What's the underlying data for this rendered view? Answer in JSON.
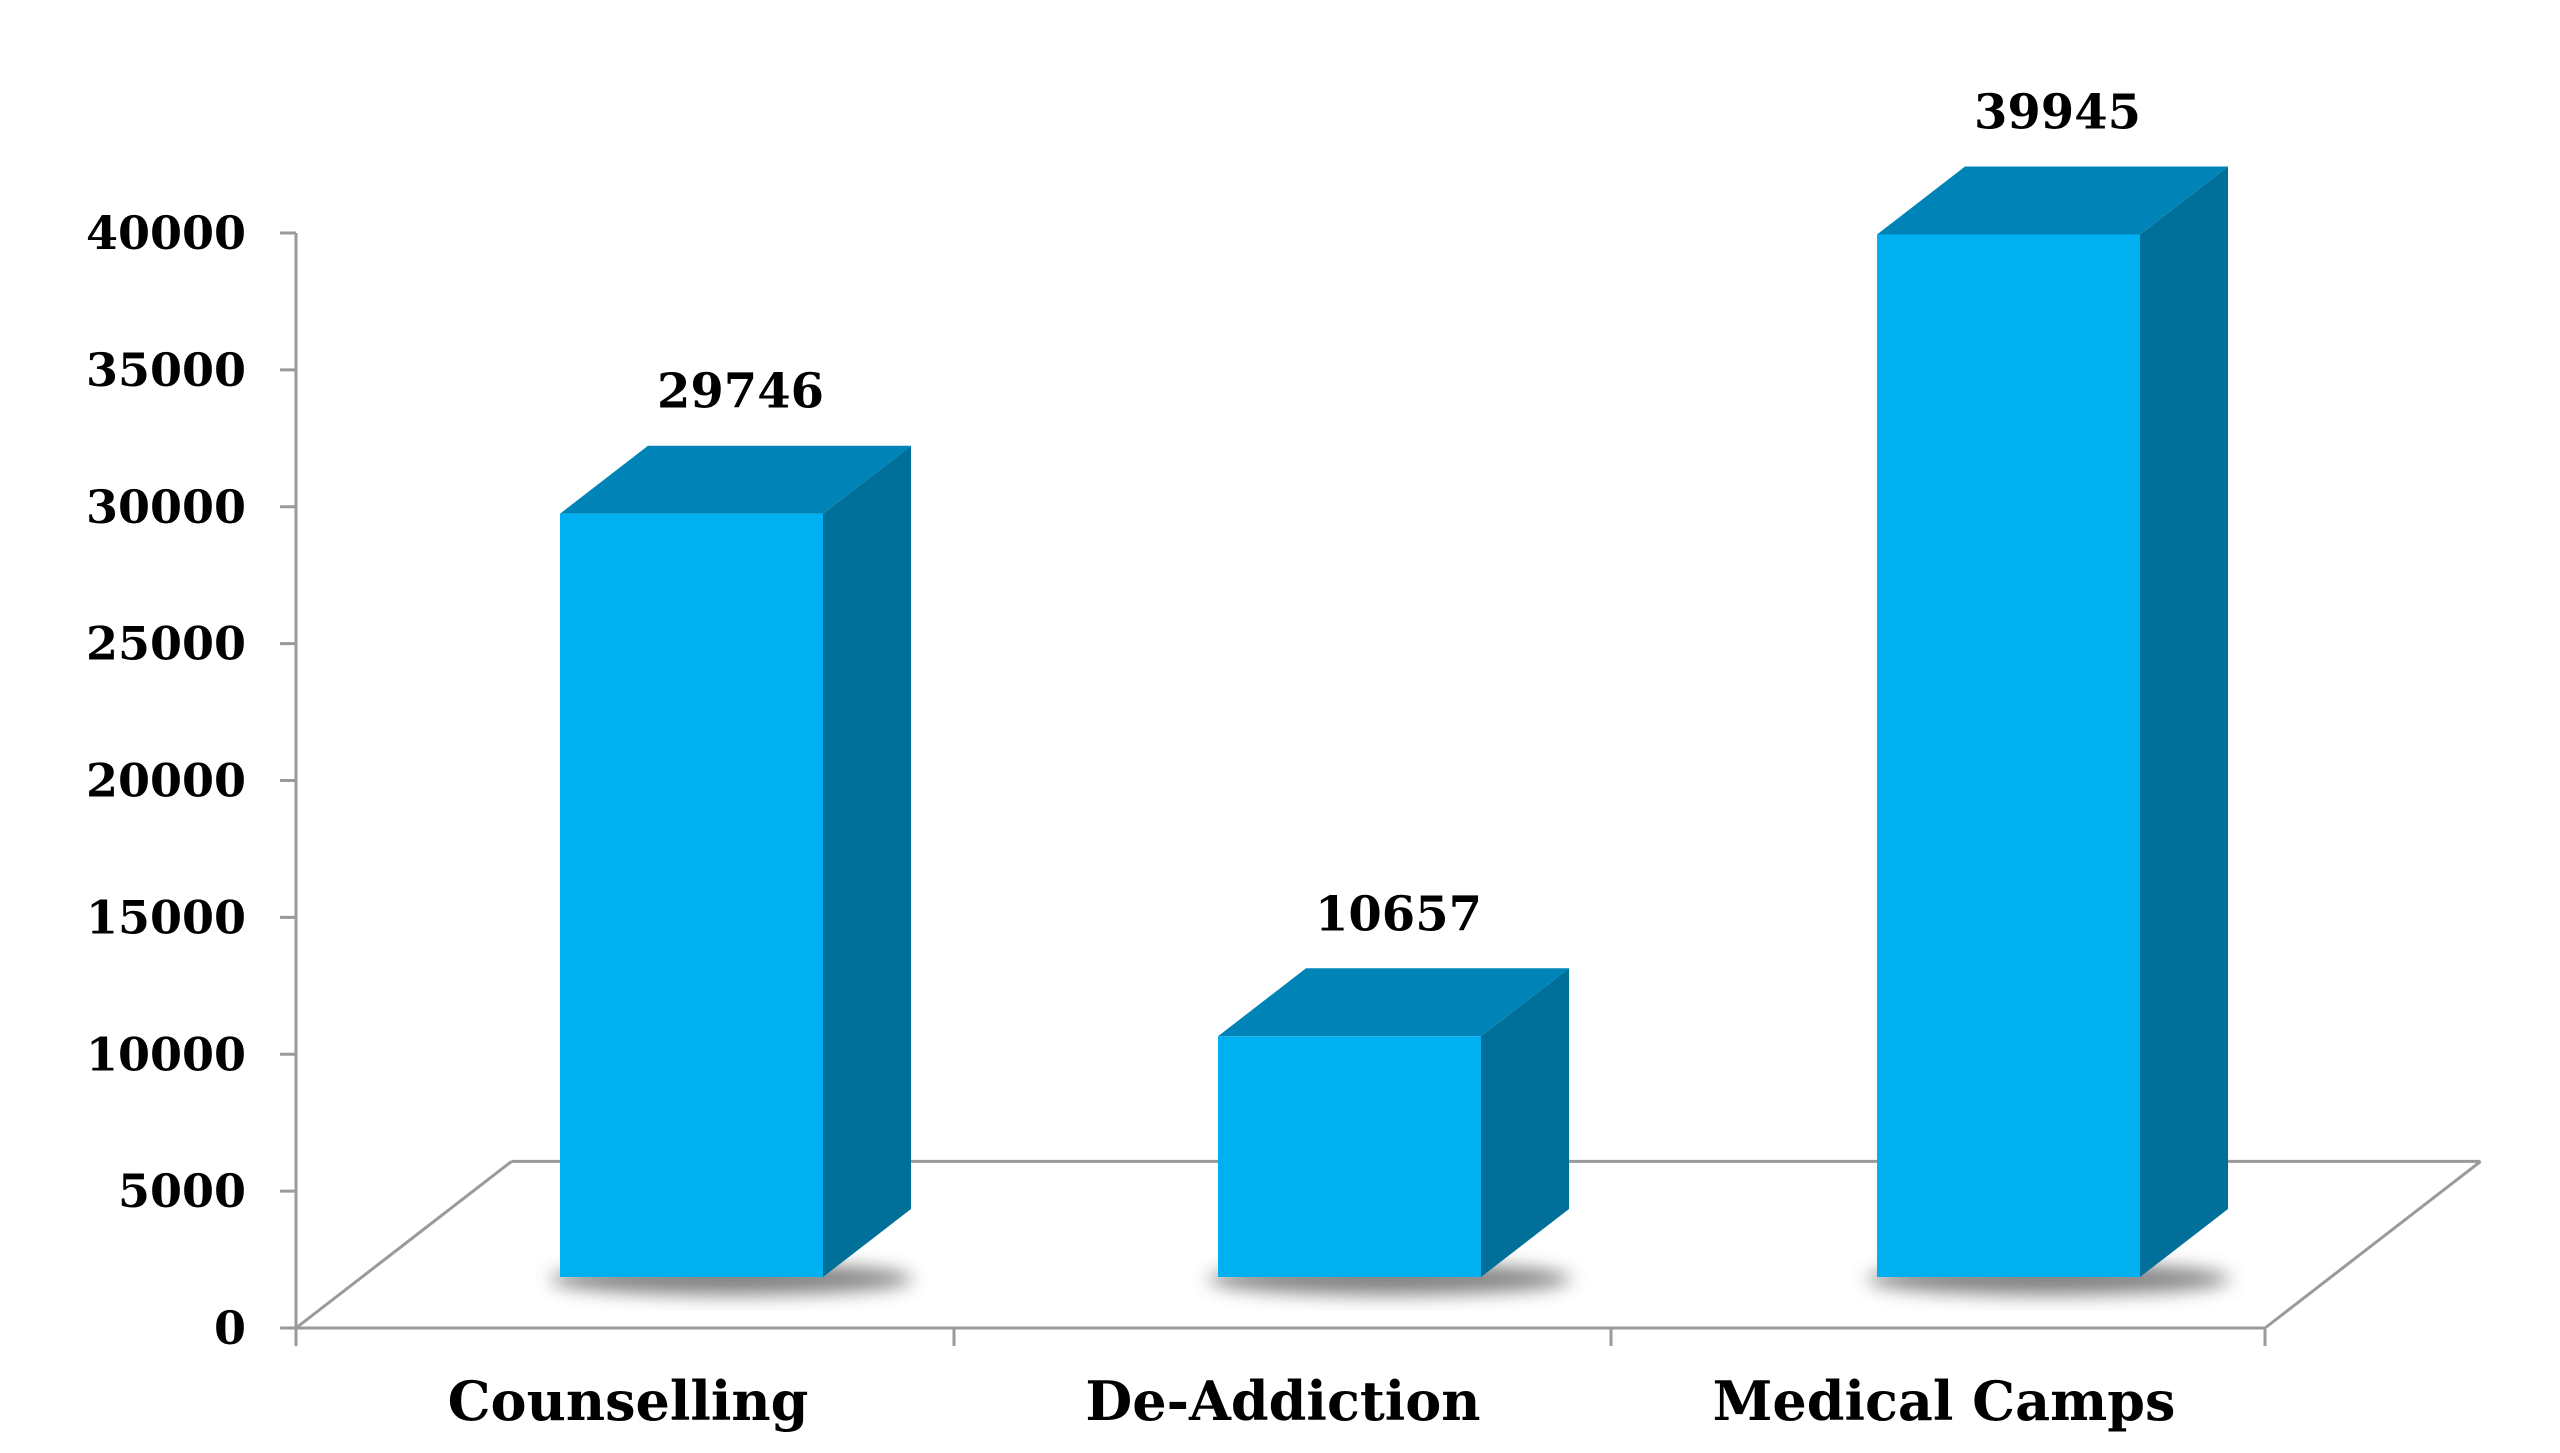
{
  "chart_data": {
    "type": "bar",
    "categories": [
      "Counselling",
      "De-Addiction",
      "Medical Camps"
    ],
    "values": [
      29746,
      10657,
      39945
    ],
    "ylim": [
      0,
      40000
    ],
    "yticks": [
      0,
      5000,
      10000,
      15000,
      20000,
      25000,
      30000,
      35000,
      40000
    ],
    "ytick_labels": [
      "0",
      "5000",
      "10000",
      "15000",
      "20000",
      "25000",
      "30000",
      "35000",
      "40000"
    ],
    "data_labels": [
      "29746",
      "10657",
      "39945"
    ],
    "title": "",
    "xlabel": "",
    "ylabel": "",
    "grid": false,
    "legend": "none",
    "style": "3d-column",
    "colors": {
      "bar_front": "#00b0f0",
      "bar_top": "#0084b8",
      "bar_side": "#00709a",
      "floor_line": "#9a9a9a",
      "shadow": "#5a5a5a"
    }
  }
}
